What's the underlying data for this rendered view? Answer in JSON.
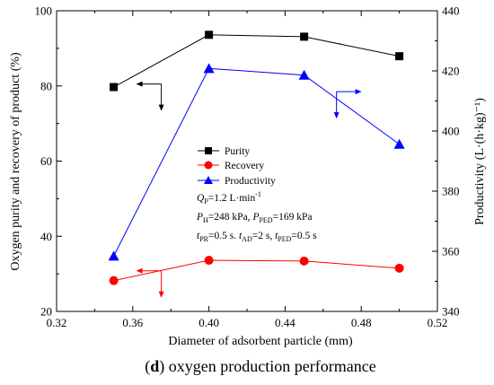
{
  "chart_data": {
    "type": "line",
    "caption": {
      "letter": "d",
      "open": "(",
      "close": ")",
      "rest": " oxygen production performance"
    },
    "xlabel": "Diameter of adsorbent particle  (mm)",
    "ylabel_left": "Oxygen purity and recovery of  product (%)",
    "ylabel_right": "Productivity (L·(h·kg)⁻¹)",
    "xlim": [
      0.32,
      0.52
    ],
    "ylim_left": [
      20,
      100
    ],
    "ylim_right": [
      340,
      440
    ],
    "x_ticks": [
      0.32,
      0.36,
      0.4,
      0.44,
      0.48,
      0.52
    ],
    "x_tick_labels": [
      "0.32",
      "0.36",
      "0.40",
      "0.44",
      "0.48",
      "0.52"
    ],
    "y_left_ticks": [
      20,
      40,
      60,
      80,
      100
    ],
    "y_left_tick_labels": [
      "20",
      "40",
      "60",
      "80",
      "100"
    ],
    "y_right_ticks": [
      340,
      360,
      380,
      400,
      420,
      440
    ],
    "y_right_tick_labels": [
      "340",
      "360",
      "380",
      "400",
      "420",
      "440"
    ],
    "grid": false,
    "legend_position": "center",
    "series": [
      {
        "name": "Purity",
        "axis": "left",
        "marker": "square",
        "color": "#000000",
        "x": [
          0.35,
          0.4,
          0.45,
          0.5
        ],
        "y": [
          79.7,
          93.6,
          93.1,
          87.9
        ]
      },
      {
        "name": "Recovery",
        "axis": "left",
        "marker": "circle",
        "color": "#ff0000",
        "x": [
          0.35,
          0.4,
          0.45,
          0.5
        ],
        "y": [
          28.2,
          33.6,
          33.4,
          31.5
        ]
      },
      {
        "name": "Productivity",
        "axis": "right",
        "marker": "triangle",
        "color": "#0000ff",
        "x": [
          0.35,
          0.4,
          0.45,
          0.5
        ],
        "y": [
          358.4,
          420.8,
          418.6,
          395.6
        ]
      }
    ],
    "axis_indicators": [
      {
        "series": "Purity",
        "x": 0.375,
        "y": 80.5,
        "axis": "left",
        "direction": "left",
        "color": "#000000"
      },
      {
        "series": "Recovery",
        "x": 0.375,
        "y": 30.8,
        "axis": "left",
        "direction": "left",
        "color": "#ff0000"
      },
      {
        "series": "Productivity",
        "x": 0.467,
        "y": 413.1,
        "axis": "right",
        "direction": "right",
        "color": "#0000ff"
      }
    ],
    "annotations": {
      "line1": {
        "sym": "Q",
        "sub": "P",
        "text": "=1.2 L·min",
        "sup": "-1"
      },
      "line2": {
        "sym1": "P",
        "sub1": "H",
        "text1": "=248 kPa, ",
        "sym2": "P",
        "sub2": "PED",
        "text2": "=169 kPa"
      },
      "line3": {
        "sym1": "t",
        "sub1": "PR",
        "text1": "=0.5 s. ",
        "sym2": "t",
        "sub2": "AD",
        "text2": "=2 s, ",
        "sym3": "t",
        "sub3": "PED",
        "text3": "=0.5 s"
      }
    }
  }
}
